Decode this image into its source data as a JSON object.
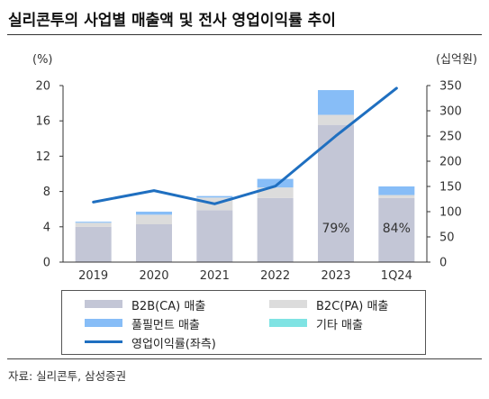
{
  "title": "실리콘투의 사업별 매출액 및 전사 영업이익률 추이",
  "source": "자료: 실리콘투, 삼성증권",
  "chart_data": {
    "type": "bar",
    "stacked": true,
    "categories": [
      "2019",
      "2020",
      "2021",
      "2022",
      "2023",
      "1Q24"
    ],
    "left_axis": {
      "unit": "(%)",
      "range": [
        0,
        20
      ],
      "ticks": [
        "0",
        "4",
        "8",
        "12",
        "16",
        "20"
      ]
    },
    "right_axis": {
      "unit": "(십억원)",
      "range": [
        0,
        350
      ],
      "ticks": [
        "0",
        "50",
        "100",
        "150",
        "200",
        "250",
        "300",
        "350"
      ]
    },
    "series": [
      {
        "name": "B2B(CA) 매출",
        "type": "bar",
        "axis": "right",
        "color": "#c3c6d6",
        "values": [
          70,
          75,
          103,
          127,
          272,
          127
        ]
      },
      {
        "name": "B2C(PA) 매출",
        "type": "bar",
        "axis": "right",
        "color": "#dcdcdc",
        "values": [
          8,
          19,
          25,
          21,
          20,
          6
        ]
      },
      {
        "name": "풀필먼트 매출",
        "type": "bar",
        "axis": "right",
        "color": "#87bdf7",
        "values": [
          2,
          6,
          3,
          17,
          49,
          17
        ]
      },
      {
        "name": "기타 매출",
        "type": "bar",
        "axis": "right",
        "color": "#7fe3e3",
        "values": [
          0,
          0,
          0,
          0,
          0,
          0
        ]
      },
      {
        "name": "영업이익률(좌측)",
        "type": "line",
        "axis": "left",
        "color": "#1f6fc0",
        "values": [
          6.8,
          8.1,
          6.6,
          8.6,
          14.3,
          19.7
        ]
      }
    ],
    "annotations": [
      {
        "category": "2023",
        "text": "79%"
      },
      {
        "category": "1Q24",
        "text": "84%"
      }
    ],
    "legend": {
      "position": "bottom",
      "items": [
        {
          "label": "B2B(CA) 매출",
          "kind": "box",
          "color": "#c3c6d6"
        },
        {
          "label": "B2C(PA) 매출",
          "kind": "box",
          "color": "#dcdcdc"
        },
        {
          "label": "풀필먼트 매출",
          "kind": "box",
          "color": "#87bdf7"
        },
        {
          "label": "기타 매출",
          "kind": "box",
          "color": "#7fe3e3"
        },
        {
          "label": "영업이익률(좌측)",
          "kind": "line",
          "color": "#1f6fc0"
        }
      ]
    }
  }
}
